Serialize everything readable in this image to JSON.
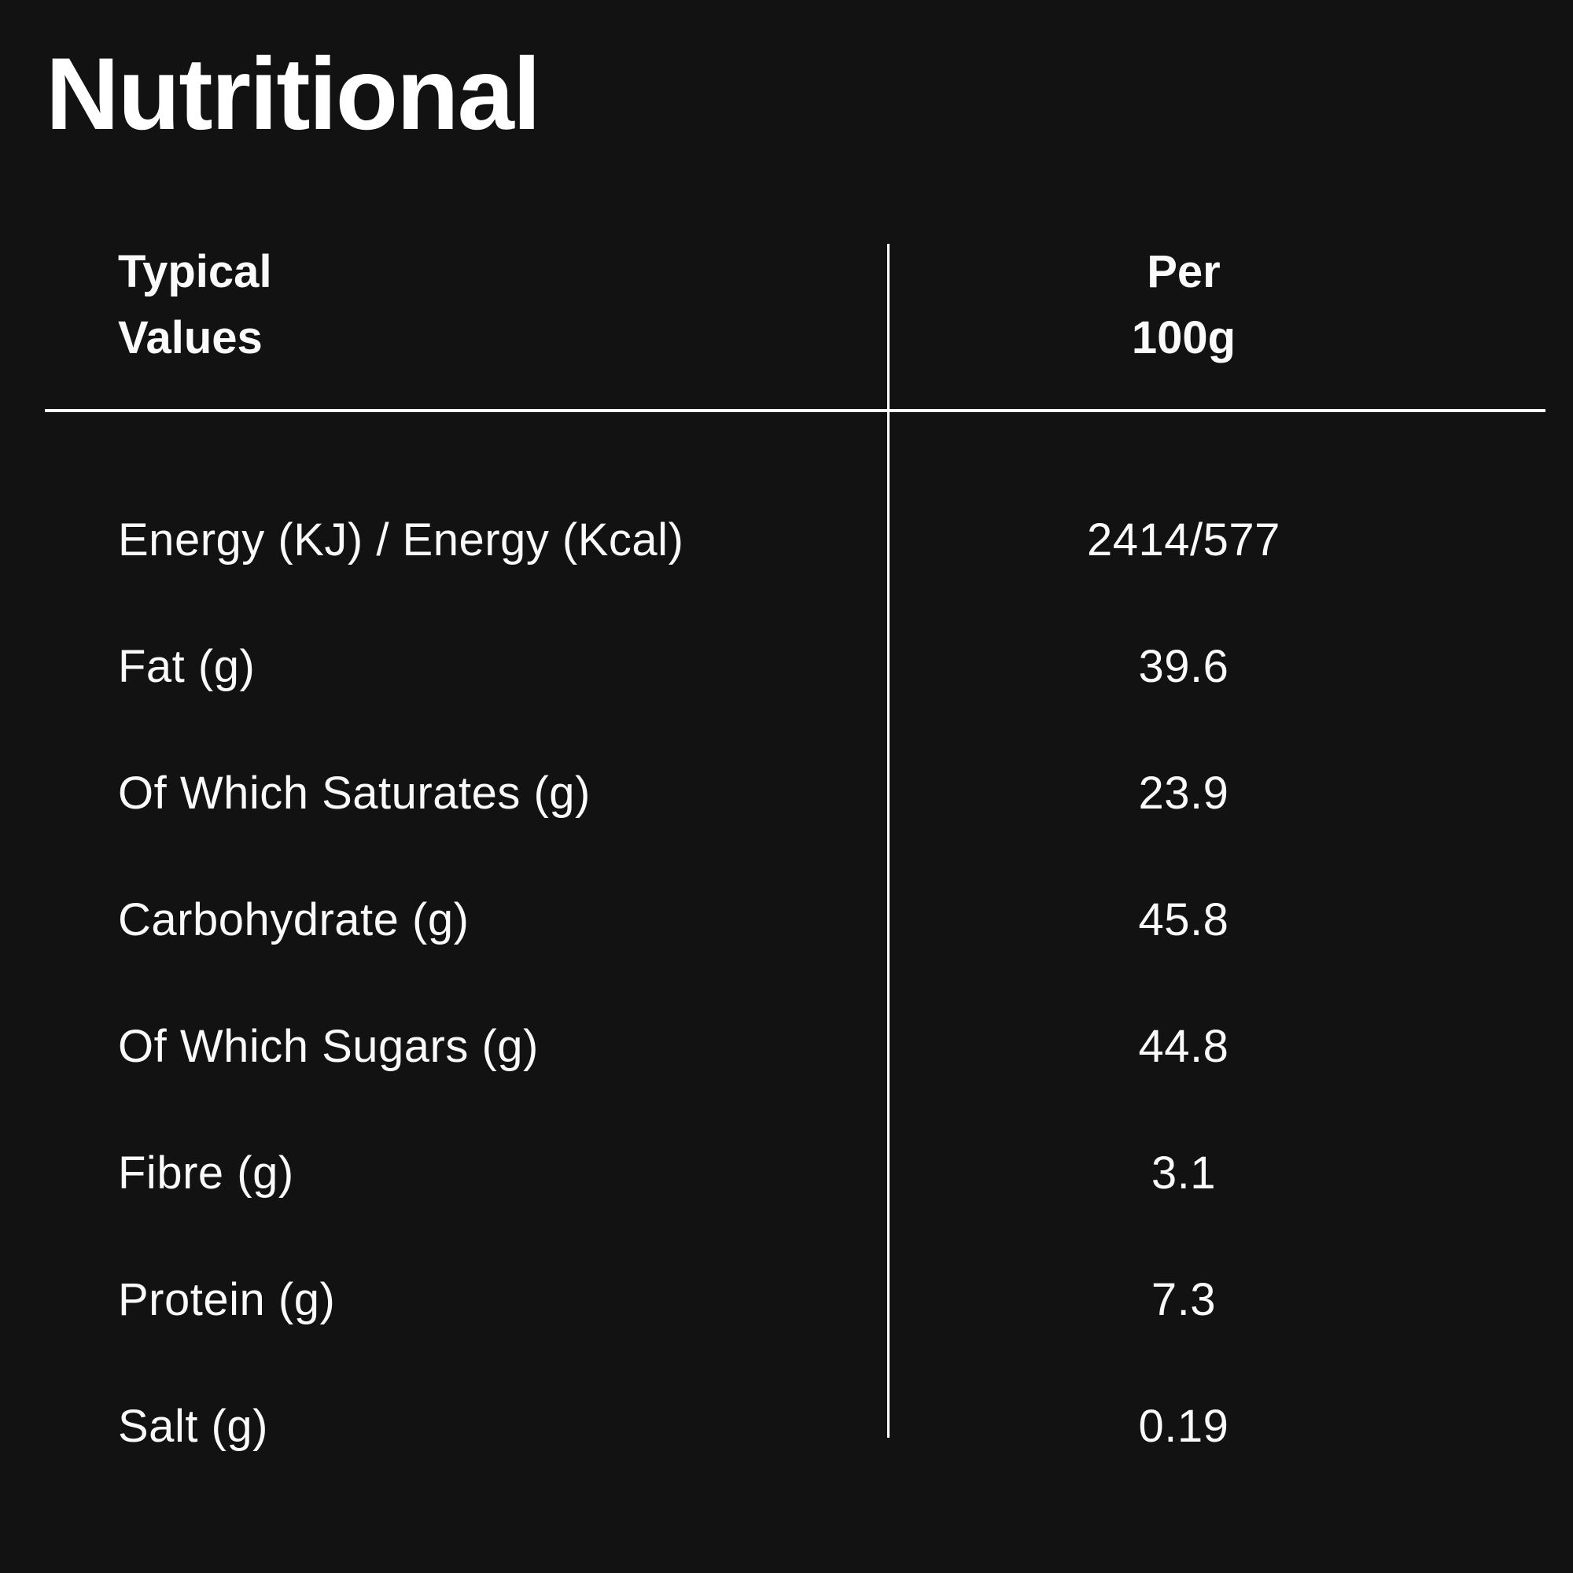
{
  "colors": {
    "background": "#131212",
    "title": "#ffffff",
    "text": "#fafafa",
    "line": "#fdfdfd"
  },
  "title": "Nutritional",
  "table": {
    "header": {
      "col1_line1": "Typical",
      "col1_line2": "Values",
      "col2_line1": "Per",
      "col2_line2": "100g"
    },
    "rows": [
      {
        "label": "Energy (KJ) / Energy (Kcal)",
        "value": "2414/577"
      },
      {
        "label": "Fat (g)",
        "value": "39.6"
      },
      {
        "label": "Of Which Saturates (g)",
        "value": "23.9"
      },
      {
        "label": "Carbohydrate (g)",
        "value": "45.8"
      },
      {
        "label": "Of Which Sugars (g)",
        "value": "44.8"
      },
      {
        "label": "Fibre (g)",
        "value": "3.1"
      },
      {
        "label": "Protein (g)",
        "value": "7.3"
      },
      {
        "label": "Salt (g)",
        "value": "0.19"
      }
    ]
  }
}
